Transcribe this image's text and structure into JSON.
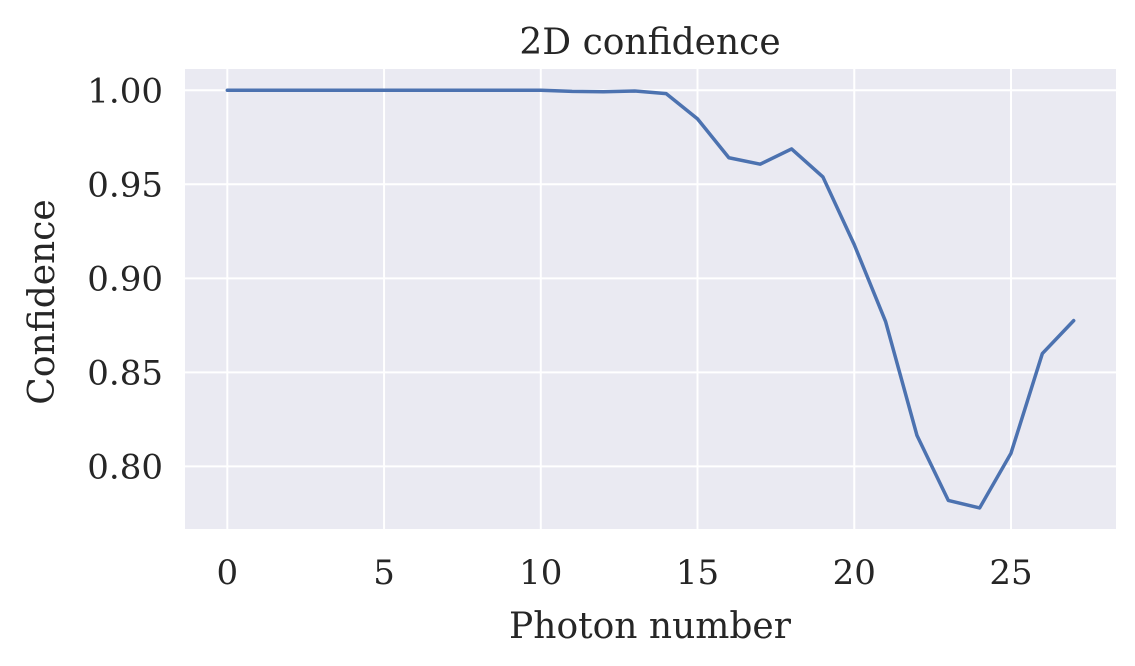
{
  "chart_data": {
    "type": "line",
    "title": "2D confidence",
    "xlabel": "Photon number",
    "ylabel": "Confidence",
    "xlim": [
      -1.35,
      28.35
    ],
    "ylim": [
      0.7667,
      1.0113
    ],
    "xticks": [
      0,
      5,
      10,
      15,
      20,
      25
    ],
    "yticks": [
      0.8,
      0.85,
      0.9,
      0.95,
      1.0
    ],
    "xtick_labels": [
      "0",
      "5",
      "10",
      "15",
      "20",
      "25"
    ],
    "ytick_labels": [
      "0.80",
      "0.85",
      "0.90",
      "0.95",
      "1.00"
    ],
    "grid": true,
    "colors": {
      "background": "#eaeaf2",
      "line": "#4c72b0"
    },
    "series": [
      {
        "x": [
          0,
          1,
          2,
          3,
          4,
          5,
          6,
          7,
          8,
          9,
          10,
          11,
          12,
          13,
          14,
          15,
          16,
          17,
          18,
          19,
          20,
          21,
          22,
          23,
          24,
          25,
          26,
          27
        ],
        "values": [
          1.0,
          1.0,
          1.0,
          1.0,
          1.0,
          1.0,
          1.0,
          1.0,
          1.0,
          1.0,
          1.0,
          0.9994,
          0.9992,
          0.9996,
          0.9982,
          0.9848,
          0.9641,
          0.9607,
          0.9688,
          0.9539,
          0.9179,
          0.877,
          0.8165,
          0.7819,
          0.7779,
          0.807,
          0.86,
          0.8775
        ]
      }
    ]
  }
}
